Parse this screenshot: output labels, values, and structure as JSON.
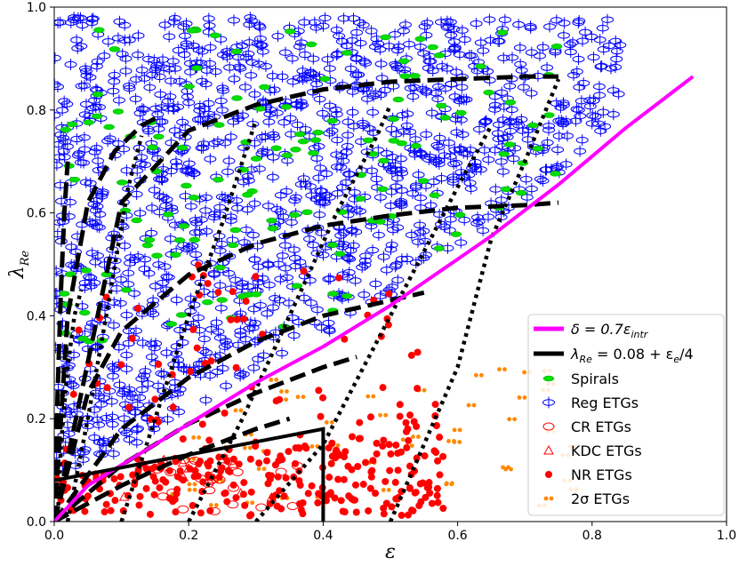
{
  "chart_data": {
    "type": "scatter",
    "xlabel": "ε",
    "ylabel": "λ",
    "ylabel_sub": "Re",
    "xlim": [
      0,
      1.0
    ],
    "ylim": [
      0,
      1.0
    ],
    "x_ticks": [
      "0.0",
      "0.2",
      "0.4",
      "0.6",
      "0.8",
      "1.0"
    ],
    "y_ticks": [
      "0.0",
      "0.2",
      "0.4",
      "0.6",
      "0.8",
      "1.0"
    ],
    "grid": false,
    "legend_position": "lower-right",
    "legend": [
      {
        "label": "δ = 0.7ε_intr",
        "text": "δ = 0.7ε",
        "sub": "intr",
        "kind": "line",
        "color": "#ff00ff"
      },
      {
        "label": "λ_Re = 0.08 + ε_e/4",
        "text": "λ",
        "sub": "Re",
        "rest": " = 0.08 + ε",
        "sub2": "e",
        "rest2": "/4",
        "kind": "line",
        "color": "#000000"
      },
      {
        "label": "Spirals",
        "kind": "spiral",
        "color": "#00cc00"
      },
      {
        "label": "Reg ETGs",
        "kind": "reg",
        "color": "#0000ff"
      },
      {
        "label": "CR ETGs",
        "kind": "cr",
        "color": "#ff0000"
      },
      {
        "label": "KDC ETGs",
        "kind": "kdc",
        "color": "#ff0000"
      },
      {
        "label": "NR ETGs",
        "kind": "nr",
        "color": "#ff0000"
      },
      {
        "label": "2σ ETGs",
        "kind": "2s",
        "color": "#ff8800"
      }
    ],
    "lines": {
      "isotropic_magenta": {
        "color": "#ff00ff",
        "x": [
          0.0,
          0.05,
          0.1,
          0.15,
          0.2,
          0.25,
          0.3,
          0.35,
          0.4,
          0.45,
          0.5,
          0.55,
          0.6,
          0.65,
          0.7,
          0.75,
          0.8,
          0.85,
          0.9,
          0.95
        ],
        "y": [
          0.0,
          0.07,
          0.11,
          0.15,
          0.19,
          0.23,
          0.27,
          0.305,
          0.34,
          0.38,
          0.42,
          0.465,
          0.51,
          0.555,
          0.605,
          0.655,
          0.71,
          0.765,
          0.815,
          0.865
        ]
      },
      "fast_slow_boundary": {
        "color": "#000000",
        "x": [
          0.0,
          0.4,
          0.4
        ],
        "y": [
          0.08,
          0.18,
          0.0
        ]
      },
      "dashed_constant_intrinsic_ellipticity": [
        {
          "x": [
            0.0,
            0.005,
            0.01,
            0.015,
            0.02
          ],
          "y": [
            0.0,
            0.25,
            0.45,
            0.6,
            0.7
          ]
        },
        {
          "x": [
            0.0,
            0.02,
            0.05,
            0.09,
            0.13,
            0.16
          ],
          "y": [
            0.0,
            0.4,
            0.62,
            0.72,
            0.77,
            0.79
          ]
        },
        {
          "x": [
            0.0,
            0.1,
            0.2,
            0.3,
            0.4,
            0.5,
            0.6,
            0.7,
            0.75
          ],
          "y": [
            0.0,
            0.62,
            0.76,
            0.81,
            0.84,
            0.855,
            0.86,
            0.865,
            0.865
          ]
        },
        {
          "x": [
            0.0,
            0.05,
            0.1,
            0.2,
            0.3,
            0.4,
            0.5,
            0.6,
            0.7,
            0.75
          ],
          "y": [
            0.0,
            0.25,
            0.37,
            0.48,
            0.54,
            0.575,
            0.595,
            0.61,
            0.615,
            0.62
          ]
        },
        {
          "x": [
            0.0,
            0.1,
            0.2,
            0.3,
            0.4,
            0.5,
            0.55
          ],
          "y": [
            0.0,
            0.18,
            0.28,
            0.35,
            0.4,
            0.43,
            0.445
          ]
        },
        {
          "x": [
            0.0,
            0.1,
            0.2,
            0.3,
            0.4,
            0.45
          ],
          "y": [
            0.0,
            0.11,
            0.19,
            0.25,
            0.3,
            0.32
          ]
        },
        {
          "x": [
            0.0,
            0.1,
            0.2,
            0.3,
            0.35
          ],
          "y": [
            0.0,
            0.07,
            0.13,
            0.18,
            0.2
          ]
        }
      ],
      "dotted_constant_inclination": [
        {
          "x": [
            0.005,
            0.01,
            0.02,
            0.03,
            0.04
          ],
          "y": [
            0.0,
            0.15,
            0.3,
            0.4,
            0.45
          ]
        },
        {
          "x": [
            0.02,
            0.05,
            0.08,
            0.11,
            0.13
          ],
          "y": [
            0.0,
            0.2,
            0.42,
            0.65,
            0.75
          ]
        },
        {
          "x": [
            0.1,
            0.15,
            0.2,
            0.25,
            0.28,
            0.3
          ],
          "y": [
            0.0,
            0.2,
            0.4,
            0.58,
            0.7,
            0.78
          ]
        },
        {
          "x": [
            0.2,
            0.28,
            0.35,
            0.42,
            0.48,
            0.5
          ],
          "y": [
            0.0,
            0.2,
            0.4,
            0.6,
            0.75,
            0.81
          ]
        },
        {
          "x": [
            0.3,
            0.4,
            0.5,
            0.6,
            0.65
          ],
          "y": [
            0.0,
            0.15,
            0.4,
            0.65,
            0.77
          ]
        },
        {
          "x": [
            0.5,
            0.6,
            0.65,
            0.7,
            0.75
          ],
          "y": [
            0.0,
            0.3,
            0.55,
            0.7,
            0.86
          ]
        }
      ]
    },
    "series": [
      {
        "name": "Spirals",
        "seed": 11,
        "count": 140,
        "region": "upper",
        "x_range": [
          0.0,
          0.75
        ],
        "y_range": [
          0.35,
          0.96
        ]
      },
      {
        "name": "Reg ETGs",
        "seed": 23,
        "count": 1300,
        "region": "upper",
        "x_range": [
          0.0,
          0.85
        ],
        "y_range": [
          0.1,
          0.98
        ]
      },
      {
        "name": "CR ETGs",
        "seed": 37,
        "count": 25,
        "region": "lower",
        "x_range": [
          0.15,
          0.42
        ],
        "y_range": [
          0.02,
          0.12
        ]
      },
      {
        "name": "KDC ETGs",
        "seed": 41,
        "count": 8,
        "region": "lower",
        "x_range": [
          0.1,
          0.35
        ],
        "y_range": [
          0.03,
          0.12
        ]
      },
      {
        "name": "NR ETGs",
        "seed": 53,
        "count": 330,
        "region": "lower",
        "x_range": [
          0.0,
          0.58
        ],
        "y_range": [
          0.01,
          0.5
        ]
      },
      {
        "name": "2σ ETGs",
        "seed": 67,
        "count": 55,
        "region": "lower",
        "x_range": [
          0.15,
          0.78
        ],
        "y_range": [
          0.03,
          0.33
        ]
      }
    ]
  }
}
